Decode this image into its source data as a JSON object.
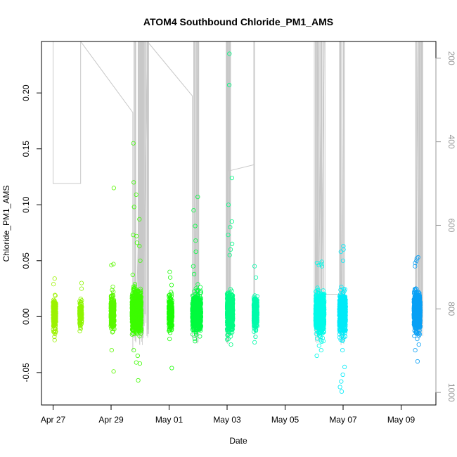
{
  "colors": {
    "axis": "#000000",
    "pressure_line": "#c8c8c8",
    "right_axis": "#9a9a9a"
  },
  "chart_data": {
    "type": "scatter",
    "title": "ATOM4 Southbound Chloride_PM1_AMS",
    "xlabel": "Date",
    "ylabel": "Chloride_PM1_AMS",
    "xlim": [
      -0.4,
      13.2
    ],
    "ylim": [
      -0.079,
      0.246
    ],
    "x_unit": "days since Apr 27",
    "x_ticks": [
      {
        "value": 0,
        "label": "Apr 27"
      },
      {
        "value": 2,
        "label": "Apr 29"
      },
      {
        "value": 4,
        "label": "May 01"
      },
      {
        "value": 6,
        "label": "May 03"
      },
      {
        "value": 8,
        "label": "May 05"
      },
      {
        "value": 10,
        "label": "May 07"
      },
      {
        "value": 12,
        "label": "May 09"
      }
    ],
    "y_ticks": [
      {
        "value": -0.05,
        "label": "-0.05"
      },
      {
        "value": 0.0,
        "label": "0.00"
      },
      {
        "value": 0.05,
        "label": "0.05"
      },
      {
        "value": 0.1,
        "label": "0.10"
      },
      {
        "value": 0.15,
        "label": "0.15"
      },
      {
        "value": 0.2,
        "label": "0.20"
      }
    ],
    "secondary_axis": {
      "name": "pressure",
      "position": "right",
      "inverted": true,
      "ylim": [
        1030,
        160
      ],
      "ticks": [
        {
          "value": 200,
          "label": "200"
        },
        {
          "value": 400,
          "label": "400"
        },
        {
          "value": 600,
          "label": "600"
        },
        {
          "value": 800,
          "label": "800"
        },
        {
          "value": 1000,
          "label": "1000"
        }
      ]
    },
    "series": [
      {
        "name": "Chloride_PM1_AMS",
        "marker": "open-circle",
        "clusters": [
          {
            "x": 0.05,
            "width": 0.1,
            "n": 260,
            "center": 0.003,
            "spread": 0.012,
            "color": "#9cf200",
            "extremes": [
              0.034,
              0.029,
              -0.021,
              -0.018
            ]
          },
          {
            "x": 0.95,
            "width": 0.08,
            "n": 140,
            "center": 0.003,
            "spread": 0.01,
            "color": "#8ef500",
            "extremes": [
              0.03,
              0.025,
              -0.013
            ]
          },
          {
            "x": 2.05,
            "width": 0.12,
            "n": 300,
            "center": 0.004,
            "spread": 0.013,
            "color": "#5af800",
            "extremes": [
              0.115,
              0.047,
              0.046,
              -0.049,
              -0.03
            ]
          },
          {
            "x": 2.88,
            "width": 0.32,
            "n": 1100,
            "center": 0.005,
            "spread": 0.015,
            "color": "#3cfc00",
            "extremes": [
              0.155,
              0.12,
              0.109,
              0.098,
              0.087,
              0.073,
              0.072,
              0.066,
              0.063,
              0.05,
              -0.041,
              -0.042,
              -0.057,
              -0.035,
              -0.03
            ]
          },
          {
            "x": 4.05,
            "width": 0.12,
            "n": 320,
            "center": 0.003,
            "spread": 0.012,
            "color": "#1afc06",
            "extremes": [
              0.04,
              0.035,
              -0.046,
              -0.02
            ]
          },
          {
            "x": 4.95,
            "width": 0.3,
            "n": 900,
            "center": 0.003,
            "spread": 0.013,
            "color": "#00fb3e",
            "extremes": [
              0.107,
              0.095,
              0.081,
              0.068,
              0.058,
              0.045,
              0.038,
              -0.022
            ]
          },
          {
            "x": 6.1,
            "width": 0.2,
            "n": 800,
            "center": 0.004,
            "spread": 0.013,
            "color": "#00fb84",
            "extremes": [
              0.235,
              0.207,
              0.124,
              0.1,
              0.085,
              0.08,
              0.073,
              0.065,
              0.06,
              0.055,
              -0.025,
              -0.02
            ]
          },
          {
            "x": 6.98,
            "width": 0.12,
            "n": 350,
            "center": 0.003,
            "spread": 0.012,
            "color": "#00fbaa",
            "extremes": [
              0.045,
              0.035,
              -0.023,
              -0.018
            ]
          },
          {
            "x": 9.2,
            "width": 0.3,
            "n": 1000,
            "center": 0.003,
            "spread": 0.014,
            "color": "#00fae8",
            "extremes": [
              0.049,
              0.048,
              0.047,
              0.046,
              0.045,
              -0.026,
              -0.035,
              -0.03
            ]
          },
          {
            "x": 9.98,
            "width": 0.22,
            "n": 700,
            "center": 0.003,
            "spread": 0.014,
            "color": "#00eaf8",
            "extremes": [
              0.063,
              0.06,
              0.058,
              0.05,
              -0.052,
              -0.058,
              -0.063,
              -0.067,
              -0.045,
              -0.03
            ]
          },
          {
            "x": 12.55,
            "width": 0.22,
            "n": 900,
            "center": 0.005,
            "spread": 0.013,
            "color": "#0aa0f5",
            "extremes": [
              0.053,
              0.052,
              0.05,
              0.048,
              0.045,
              -0.04,
              -0.03,
              -0.025,
              -0.02
            ]
          }
        ]
      },
      {
        "name": "pressure",
        "style": "line",
        "axis": "secondary",
        "segments": [
          {
            "x": [
              0.0,
              0.0,
              0.95,
              0.95,
              0.95
            ],
            "y": [
              160,
              500,
              500,
              160,
              160
            ]
          },
          {
            "x": 0.95,
            "to_x": 2.75,
            "note": "descent"
          },
          {
            "x": [
              0.95,
              2.75,
              2.75
            ],
            "y": [
              160,
              330,
              900
            ]
          },
          {
            "x": [
              2.85,
              2.85,
              3.1,
              3.1,
              3.25,
              3.25
            ],
            "y": [
              160,
              880,
              160,
              870,
              160,
              860
            ]
          },
          {
            "x": [
              3.25,
              4.8,
              4.8
            ],
            "y": [
              160,
              290,
              870
            ]
          },
          {
            "x": [
              4.9,
              4.9,
              5.0,
              5.0
            ],
            "y": [
              160,
              860,
              160,
              880
            ]
          },
          {
            "x": [
              6.0,
              6.0,
              6.05,
              6.05,
              6.1,
              6.1
            ],
            "y": [
              160,
              880,
              160,
              470,
              160,
              860
            ]
          },
          {
            "x": [
              6.05,
              6.92,
              6.92,
              6.92
            ],
            "y": [
              470,
              455,
              160,
              680
            ]
          },
          {
            "x": [
              9.05,
              9.05,
              9.15,
              9.15,
              9.25,
              9.25,
              9.35
            ],
            "y": [
              160,
              860,
              160,
              880,
              160,
              850,
              160
            ]
          },
          {
            "x": [
              9.4,
              9.9,
              9.9,
              9.95,
              10.02
            ],
            "y": [
              765,
              765,
              160,
              870,
              160
            ]
          },
          {
            "x": [
              12.5,
              12.5,
              12.58,
              12.58,
              12.65,
              12.65,
              12.72
            ],
            "y": [
              160,
              840,
              160,
              860,
              160,
              830,
              385
            ]
          }
        ]
      }
    ]
  }
}
